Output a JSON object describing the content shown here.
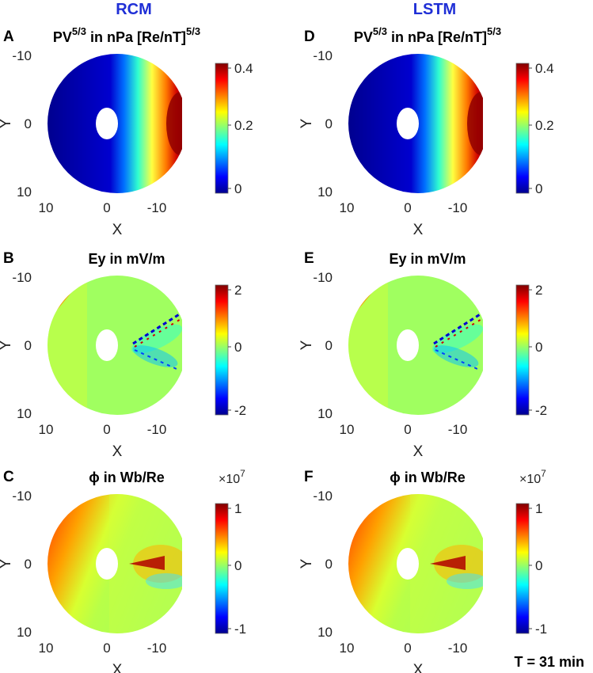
{
  "columns": [
    {
      "title": "RCM"
    },
    {
      "title": "LSTM"
    }
  ],
  "panels": [
    {
      "letter": "A",
      "col": 0,
      "row": 0,
      "title": "PV",
      "sup": "5/3",
      "title_rest": " in nPa [Re/nT]",
      "sup2": "5/3",
      "kind": "pv",
      "colorbar": {
        "ticks": [
          "0.4",
          "0.2",
          "0"
        ],
        "exponent": ""
      }
    },
    {
      "letter": "B",
      "col": 0,
      "row": 1,
      "title": "Ey in mV/m",
      "sup": "",
      "title_rest": "",
      "sup2": "",
      "kind": "ey",
      "colorbar": {
        "ticks": [
          "2",
          "0",
          "-2"
        ],
        "exponent": ""
      }
    },
    {
      "letter": "C",
      "col": 0,
      "row": 2,
      "title": "ϕ in Wb/Re",
      "sup": "",
      "title_rest": "",
      "sup2": "",
      "kind": "phi",
      "colorbar": {
        "ticks": [
          "1",
          "0",
          "-1"
        ],
        "exponent": "×10",
        "exponent_power": "7"
      }
    },
    {
      "letter": "D",
      "col": 1,
      "row": 0,
      "title": "PV",
      "sup": "5/3",
      "title_rest": " in nPa [Re/nT]",
      "sup2": "5/3",
      "kind": "pv",
      "colorbar": {
        "ticks": [
          "0.4",
          "0.2",
          "0"
        ],
        "exponent": ""
      }
    },
    {
      "letter": "E",
      "col": 1,
      "row": 1,
      "title": "Ey in mV/m",
      "sup": "",
      "title_rest": "",
      "sup2": "",
      "kind": "ey",
      "colorbar": {
        "ticks": [
          "2",
          "0",
          "-2"
        ],
        "exponent": ""
      }
    },
    {
      "letter": "F",
      "col": 1,
      "row": 2,
      "title": "ϕ in Wb/Re",
      "sup": "",
      "title_rest": "",
      "sup2": "",
      "kind": "phi",
      "colorbar": {
        "ticks": [
          "1",
          "0",
          "-1"
        ],
        "exponent": "×10",
        "exponent_power": "7"
      }
    }
  ],
  "axes": {
    "xlabel": "X",
    "ylabel": "Y",
    "xticks": [
      "10",
      "0",
      "-10"
    ],
    "yticks": [
      "-10",
      "0",
      "10"
    ]
  },
  "footer": "T = 31 min",
  "colors": {
    "col_title": "#1f2fd6"
  }
}
